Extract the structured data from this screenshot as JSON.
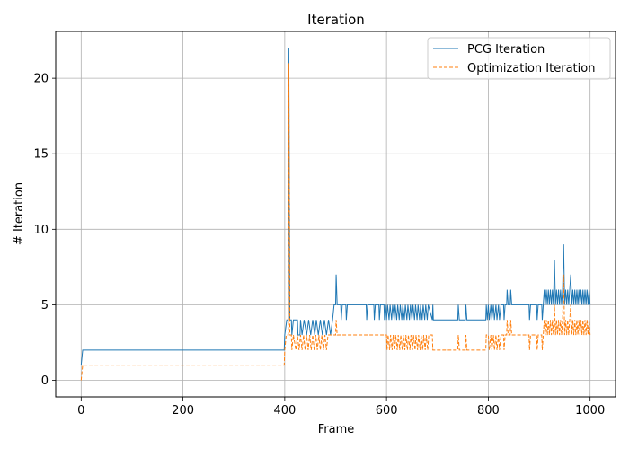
{
  "chart_data": {
    "type": "line",
    "title": "Iteration",
    "xlabel": "Frame",
    "ylabel": "# Iteration",
    "xlim": [
      -50,
      1050
    ],
    "ylim": [
      -1.1,
      23.1
    ],
    "xticks": [
      0,
      200,
      400,
      600,
      800,
      1000
    ],
    "yticks": [
      0,
      5,
      10,
      15,
      20
    ],
    "grid": true,
    "legend_position": "top-right",
    "series": [
      {
        "name": "PCG Iteration",
        "color": "#1f77b4",
        "style": "solid",
        "points": [
          [
            0,
            1
          ],
          [
            3,
            2
          ],
          [
            399,
            2
          ],
          [
            400,
            3
          ],
          [
            404,
            4
          ],
          [
            407,
            4
          ],
          [
            408,
            22
          ],
          [
            410,
            4
          ],
          [
            413,
            4
          ],
          [
            414,
            3
          ],
          [
            417,
            4
          ],
          [
            425,
            4
          ],
          [
            426,
            3
          ],
          [
            430,
            3
          ],
          [
            431,
            4
          ],
          [
            434,
            3
          ],
          [
            438,
            4
          ],
          [
            443,
            3
          ],
          [
            447,
            4
          ],
          [
            451,
            3
          ],
          [
            455,
            4
          ],
          [
            459,
            3
          ],
          [
            462,
            4
          ],
          [
            466,
            3
          ],
          [
            470,
            4
          ],
          [
            474,
            3
          ],
          [
            478,
            4
          ],
          [
            482,
            3
          ],
          [
            486,
            4
          ],
          [
            490,
            3
          ],
          [
            494,
            4
          ],
          [
            497,
            5
          ],
          [
            500,
            5
          ],
          [
            501,
            7
          ],
          [
            503,
            5
          ],
          [
            510,
            5
          ],
          [
            511,
            4
          ],
          [
            513,
            5
          ],
          [
            520,
            5
          ],
          [
            521,
            4
          ],
          [
            523,
            5
          ],
          [
            560,
            5
          ],
          [
            561,
            4
          ],
          [
            563,
            5
          ],
          [
            575,
            5
          ],
          [
            576,
            4
          ],
          [
            578,
            5
          ],
          [
            585,
            5
          ],
          [
            586,
            4
          ],
          [
            588,
            5
          ],
          [
            595,
            5
          ],
          [
            596,
            4
          ],
          [
            598,
            5
          ],
          [
            600,
            4
          ],
          [
            602,
            5
          ],
          [
            605,
            4
          ],
          [
            607,
            5
          ],
          [
            610,
            4
          ],
          [
            612,
            5
          ],
          [
            615,
            4
          ],
          [
            617,
            5
          ],
          [
            620,
            4
          ],
          [
            622,
            5
          ],
          [
            625,
            4
          ],
          [
            627,
            5
          ],
          [
            630,
            4
          ],
          [
            632,
            5
          ],
          [
            635,
            4
          ],
          [
            637,
            5
          ],
          [
            640,
            4
          ],
          [
            642,
            5
          ],
          [
            645,
            4
          ],
          [
            647,
            5
          ],
          [
            650,
            4
          ],
          [
            652,
            5
          ],
          [
            655,
            4
          ],
          [
            657,
            5
          ],
          [
            660,
            4
          ],
          [
            662,
            5
          ],
          [
            665,
            4
          ],
          [
            667,
            5
          ],
          [
            670,
            4
          ],
          [
            672,
            5
          ],
          [
            675,
            4
          ],
          [
            677,
            5
          ],
          [
            680,
            4
          ],
          [
            682,
            5
          ],
          [
            690,
            4
          ],
          [
            691,
            5
          ],
          [
            692,
            4
          ],
          [
            740,
            4
          ],
          [
            741,
            5
          ],
          [
            743,
            4
          ],
          [
            755,
            4
          ],
          [
            756,
            5
          ],
          [
            758,
            4
          ],
          [
            795,
            4
          ],
          [
            796,
            5
          ],
          [
            798,
            4
          ],
          [
            800,
            5
          ],
          [
            802,
            4
          ],
          [
            805,
            5
          ],
          [
            807,
            4
          ],
          [
            810,
            5
          ],
          [
            812,
            4
          ],
          [
            815,
            5
          ],
          [
            817,
            4
          ],
          [
            820,
            5
          ],
          [
            822,
            4
          ],
          [
            825,
            5
          ],
          [
            830,
            5
          ],
          [
            831,
            4
          ],
          [
            833,
            5
          ],
          [
            836,
            5
          ],
          [
            837,
            6
          ],
          [
            839,
            5
          ],
          [
            843,
            5
          ],
          [
            844,
            6
          ],
          [
            846,
            5
          ],
          [
            850,
            5
          ],
          [
            880,
            5
          ],
          [
            881,
            4
          ],
          [
            883,
            5
          ],
          [
            895,
            5
          ],
          [
            896,
            4
          ],
          [
            898,
            5
          ],
          [
            905,
            5
          ],
          [
            906,
            4
          ],
          [
            908,
            5
          ],
          [
            910,
            6
          ],
          [
            912,
            5
          ],
          [
            914,
            6
          ],
          [
            916,
            5
          ],
          [
            918,
            6
          ],
          [
            920,
            5
          ],
          [
            922,
            6
          ],
          [
            924,
            5
          ],
          [
            926,
            6
          ],
          [
            928,
            5
          ],
          [
            930,
            8
          ],
          [
            932,
            5
          ],
          [
            934,
            6
          ],
          [
            936,
            5
          ],
          [
            938,
            6
          ],
          [
            940,
            5
          ],
          [
            942,
            6
          ],
          [
            944,
            5
          ],
          [
            946,
            6
          ],
          [
            948,
            9
          ],
          [
            950,
            5
          ],
          [
            952,
            6
          ],
          [
            954,
            5
          ],
          [
            956,
            6
          ],
          [
            958,
            5
          ],
          [
            960,
            6
          ],
          [
            962,
            7
          ],
          [
            964,
            5
          ],
          [
            966,
            6
          ],
          [
            968,
            5
          ],
          [
            970,
            6
          ],
          [
            972,
            5
          ],
          [
            974,
            6
          ],
          [
            976,
            5
          ],
          [
            978,
            6
          ],
          [
            980,
            5
          ],
          [
            982,
            6
          ],
          [
            984,
            5
          ],
          [
            986,
            6
          ],
          [
            988,
            5
          ],
          [
            990,
            6
          ],
          [
            992,
            5
          ],
          [
            994,
            6
          ],
          [
            996,
            5
          ],
          [
            998,
            6
          ],
          [
            1000,
            5
          ]
        ]
      },
      {
        "name": "Optimization Iteration",
        "color": "#ff7f0e",
        "style": "dashed",
        "points": [
          [
            0,
            0
          ],
          [
            3,
            1
          ],
          [
            399,
            1
          ],
          [
            400,
            2
          ],
          [
            403,
            3
          ],
          [
            407,
            3
          ],
          [
            408,
            21
          ],
          [
            410,
            3
          ],
          [
            413,
            3
          ],
          [
            414,
            2
          ],
          [
            417,
            3
          ],
          [
            422,
            2
          ],
          [
            425,
            3
          ],
          [
            428,
            2
          ],
          [
            431,
            3
          ],
          [
            434,
            2
          ],
          [
            437,
            3
          ],
          [
            440,
            2
          ],
          [
            443,
            3
          ],
          [
            446,
            2
          ],
          [
            449,
            3
          ],
          [
            452,
            2
          ],
          [
            455,
            3
          ],
          [
            458,
            2
          ],
          [
            461,
            3
          ],
          [
            464,
            2
          ],
          [
            467,
            3
          ],
          [
            470,
            2
          ],
          [
            473,
            3
          ],
          [
            476,
            2
          ],
          [
            479,
            3
          ],
          [
            482,
            2
          ],
          [
            485,
            3
          ],
          [
            490,
            3
          ],
          [
            500,
            3
          ],
          [
            501,
            4
          ],
          [
            503,
            3
          ],
          [
            560,
            3
          ],
          [
            600,
            3
          ],
          [
            601,
            2
          ],
          [
            603,
            3
          ],
          [
            606,
            2
          ],
          [
            608,
            3
          ],
          [
            611,
            2
          ],
          [
            613,
            3
          ],
          [
            616,
            2
          ],
          [
            618,
            3
          ],
          [
            621,
            2
          ],
          [
            623,
            3
          ],
          [
            626,
            2
          ],
          [
            628,
            3
          ],
          [
            631,
            2
          ],
          [
            633,
            3
          ],
          [
            636,
            2
          ],
          [
            638,
            3
          ],
          [
            641,
            2
          ],
          [
            643,
            3
          ],
          [
            646,
            2
          ],
          [
            648,
            3
          ],
          [
            651,
            2
          ],
          [
            653,
            3
          ],
          [
            656,
            2
          ],
          [
            658,
            3
          ],
          [
            661,
            2
          ],
          [
            663,
            3
          ],
          [
            666,
            2
          ],
          [
            668,
            3
          ],
          [
            671,
            2
          ],
          [
            673,
            3
          ],
          [
            676,
            2
          ],
          [
            678,
            3
          ],
          [
            681,
            2
          ],
          [
            683,
            3
          ],
          [
            690,
            3
          ],
          [
            691,
            2
          ],
          [
            740,
            2
          ],
          [
            741,
            3
          ],
          [
            743,
            2
          ],
          [
            755,
            2
          ],
          [
            756,
            3
          ],
          [
            758,
            2
          ],
          [
            795,
            2
          ],
          [
            796,
            3
          ],
          [
            800,
            3
          ],
          [
            802,
            2
          ],
          [
            805,
            3
          ],
          [
            807,
            2
          ],
          [
            810,
            3
          ],
          [
            812,
            2
          ],
          [
            815,
            3
          ],
          [
            817,
            2
          ],
          [
            820,
            3
          ],
          [
            822,
            2
          ],
          [
            825,
            3
          ],
          [
            830,
            3
          ],
          [
            831,
            2
          ],
          [
            833,
            3
          ],
          [
            836,
            3
          ],
          [
            837,
            4
          ],
          [
            839,
            3
          ],
          [
            843,
            3
          ],
          [
            844,
            4
          ],
          [
            846,
            3
          ],
          [
            880,
            3
          ],
          [
            881,
            2
          ],
          [
            883,
            3
          ],
          [
            895,
            3
          ],
          [
            896,
            2
          ],
          [
            898,
            3
          ],
          [
            905,
            3
          ],
          [
            906,
            2
          ],
          [
            908,
            3
          ],
          [
            910,
            4
          ],
          [
            912,
            3
          ],
          [
            914,
            4
          ],
          [
            916,
            3
          ],
          [
            918,
            4
          ],
          [
            920,
            3
          ],
          [
            922,
            4
          ],
          [
            924,
            3
          ],
          [
            926,
            4
          ],
          [
            928,
            3
          ],
          [
            930,
            5
          ],
          [
            932,
            3
          ],
          [
            934,
            4
          ],
          [
            936,
            3
          ],
          [
            938,
            4
          ],
          [
            940,
            3
          ],
          [
            942,
            4
          ],
          [
            944,
            3
          ],
          [
            946,
            4
          ],
          [
            948,
            7
          ],
          [
            950,
            3
          ],
          [
            952,
            4
          ],
          [
            954,
            3
          ],
          [
            956,
            4
          ],
          [
            958,
            3
          ],
          [
            960,
            4
          ],
          [
            962,
            5
          ],
          [
            964,
            3
          ],
          [
            966,
            4
          ],
          [
            968,
            3
          ],
          [
            970,
            4
          ],
          [
            972,
            3
          ],
          [
            974,
            4
          ],
          [
            976,
            3
          ],
          [
            978,
            4
          ],
          [
            980,
            3
          ],
          [
            982,
            4
          ],
          [
            984,
            3
          ],
          [
            986,
            4
          ],
          [
            988,
            3
          ],
          [
            990,
            4
          ],
          [
            992,
            3
          ],
          [
            994,
            4
          ],
          [
            996,
            3
          ],
          [
            998,
            4
          ],
          [
            1000,
            3
          ]
        ]
      }
    ]
  }
}
